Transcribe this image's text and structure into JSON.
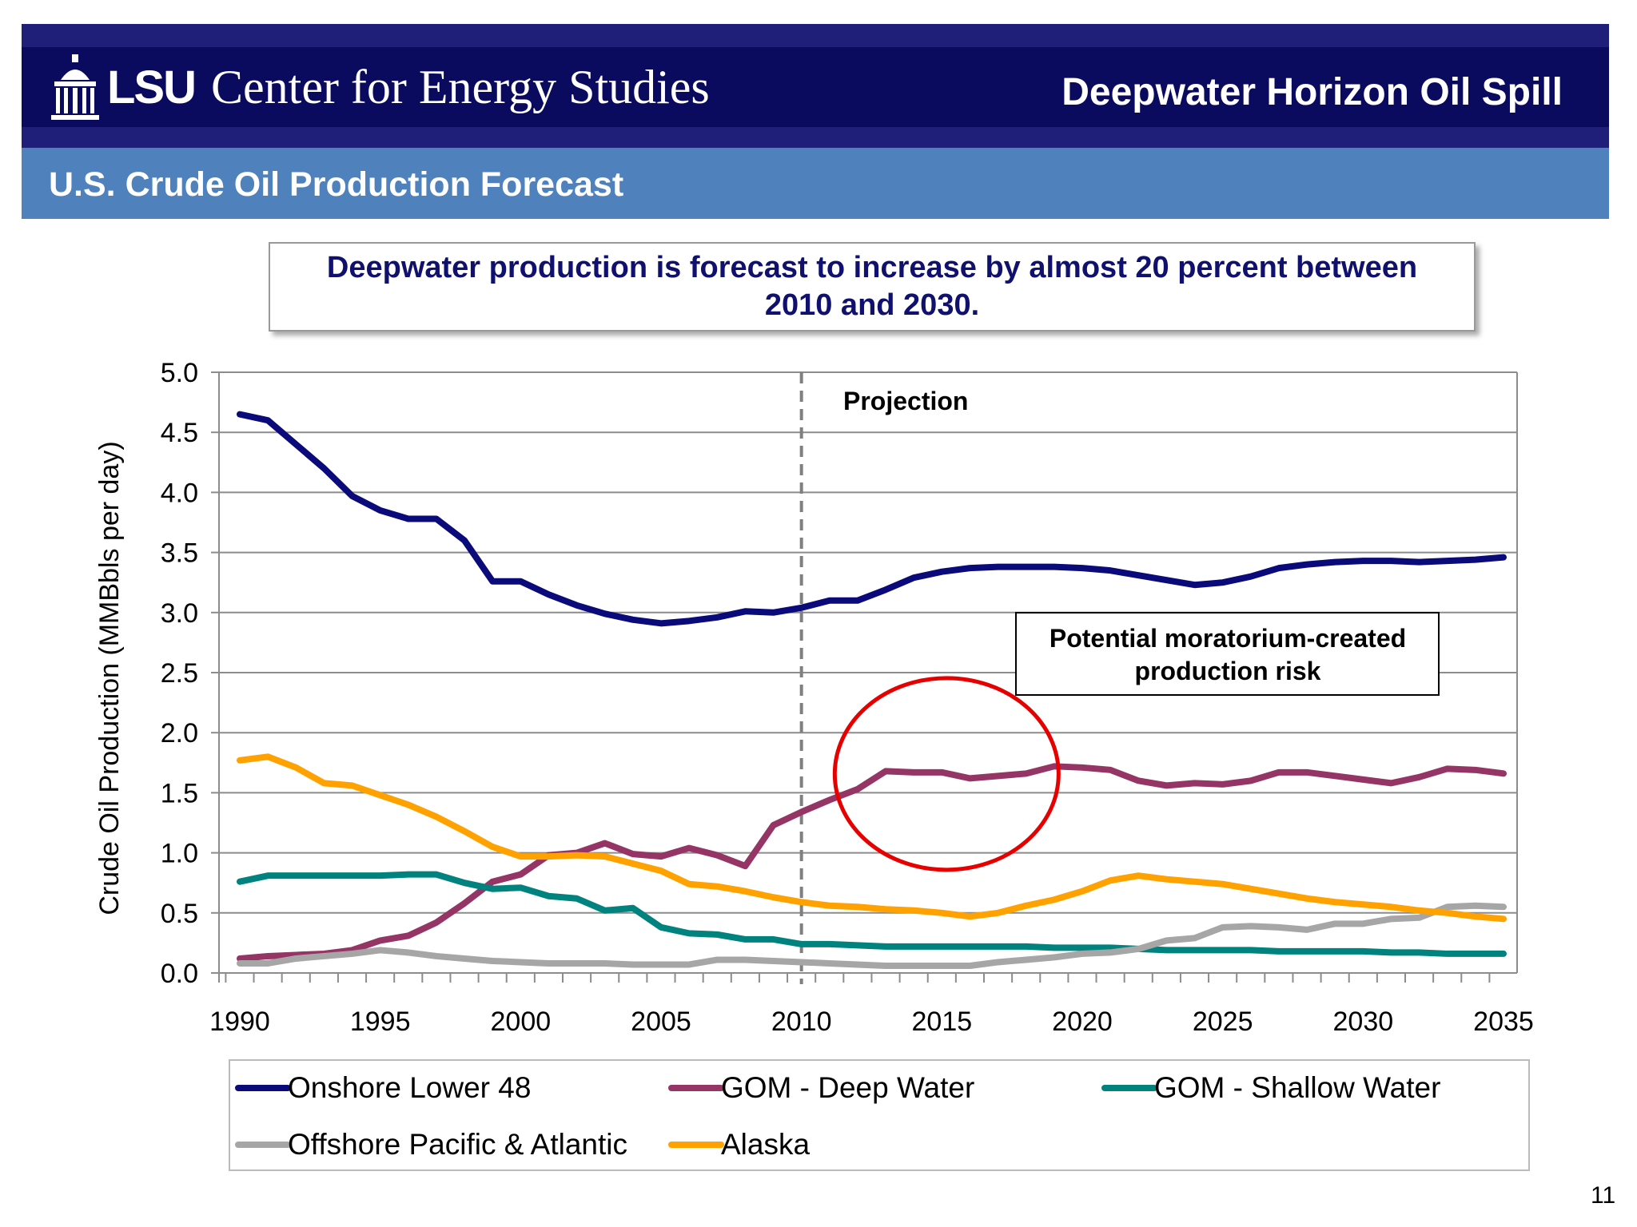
{
  "header": {
    "logo_text": "LSU",
    "org": "Center for Energy Studies",
    "topic": "Deepwater Horizon Oil Spill"
  },
  "slide_title": "U.S. Crude Oil Production Forecast",
  "callout": "Deepwater production is forecast to increase by almost 20 percent between 2010 and 2030.",
  "page_number": "11",
  "colors": {
    "header_dark": "#0a0a5e",
    "subheader": "#4f81bd",
    "callout_text": "#10106e",
    "circle": "#e60000"
  },
  "chart_data": {
    "type": "line",
    "ylabel": "Crude Oil Production (MMBbls per day)",
    "xlabel": "",
    "ylim": [
      0,
      5
    ],
    "xlim": [
      1990,
      2035
    ],
    "yticks": [
      "0.0",
      "0.5",
      "1.0",
      "1.5",
      "2.0",
      "2.5",
      "3.0",
      "3.5",
      "4.0",
      "4.5",
      "5.0"
    ],
    "xticks": [
      "1990",
      "1995",
      "2000",
      "2005",
      "2010",
      "2015",
      "2020",
      "2025",
      "2030",
      "2035"
    ],
    "grid": true,
    "legend_position": "bottom",
    "annotations": {
      "projection_label": "Projection",
      "projection_start": 2010,
      "risk_box": "Potential moratorium-created production risk",
      "risk_circle_center": [
        2015,
        1.67
      ]
    },
    "x_start": 1990,
    "series": [
      {
        "name": "Onshore Lower 48",
        "color": "#0a0a7a",
        "values": [
          4.65,
          4.6,
          4.4,
          4.2,
          3.97,
          3.85,
          3.78,
          3.78,
          3.6,
          3.26,
          3.26,
          3.15,
          3.06,
          2.99,
          2.94,
          2.91,
          2.93,
          2.96,
          3.01,
          3.0,
          3.04,
          3.1,
          3.1,
          3.19,
          3.29,
          3.34,
          3.37,
          3.38,
          3.38,
          3.38,
          3.37,
          3.35,
          3.31,
          3.27,
          3.23,
          3.25,
          3.3,
          3.37,
          3.4,
          3.42,
          3.43,
          3.43,
          3.42,
          3.43,
          3.44,
          3.46
        ]
      },
      {
        "name": "GOM - Deep Water",
        "color": "#953565",
        "values": [
          0.12,
          0.14,
          0.15,
          0.16,
          0.19,
          0.27,
          0.31,
          0.42,
          0.58,
          0.76,
          0.82,
          0.98,
          1.0,
          1.08,
          0.99,
          0.97,
          1.04,
          0.98,
          0.89,
          1.23,
          1.34,
          1.44,
          1.53,
          1.68,
          1.67,
          1.67,
          1.62,
          1.64,
          1.66,
          1.72,
          1.71,
          1.69,
          1.6,
          1.56,
          1.58,
          1.57,
          1.6,
          1.67,
          1.67,
          1.64,
          1.61,
          1.58,
          1.63,
          1.7,
          1.69,
          1.66
        ]
      },
      {
        "name": "GOM - Shallow Water",
        "color": "#00837f",
        "values": [
          0.76,
          0.81,
          0.81,
          0.81,
          0.81,
          0.81,
          0.82,
          0.82,
          0.75,
          0.7,
          0.71,
          0.64,
          0.62,
          0.52,
          0.54,
          0.38,
          0.33,
          0.32,
          0.28,
          0.28,
          0.24,
          0.24,
          0.23,
          0.22,
          0.22,
          0.22,
          0.22,
          0.22,
          0.22,
          0.21,
          0.21,
          0.21,
          0.2,
          0.19,
          0.19,
          0.19,
          0.19,
          0.18,
          0.18,
          0.18,
          0.18,
          0.17,
          0.17,
          0.16,
          0.16,
          0.16
        ]
      },
      {
        "name": "Offshore Pacific & Atlantic",
        "color": "#a6a6a6",
        "values": [
          0.08,
          0.08,
          0.12,
          0.14,
          0.16,
          0.19,
          0.17,
          0.14,
          0.12,
          0.1,
          0.09,
          0.08,
          0.08,
          0.08,
          0.07,
          0.07,
          0.07,
          0.11,
          0.11,
          0.1,
          0.09,
          0.08,
          0.07,
          0.06,
          0.06,
          0.06,
          0.06,
          0.09,
          0.11,
          0.13,
          0.16,
          0.17,
          0.2,
          0.27,
          0.29,
          0.38,
          0.39,
          0.38,
          0.36,
          0.41,
          0.41,
          0.45,
          0.46,
          0.55,
          0.56,
          0.55
        ]
      },
      {
        "name": "Alaska",
        "color": "#ffa200",
        "values": [
          1.77,
          1.8,
          1.71,
          1.58,
          1.56,
          1.48,
          1.4,
          1.3,
          1.18,
          1.05,
          0.97,
          0.97,
          0.98,
          0.97,
          0.91,
          0.85,
          0.74,
          0.72,
          0.68,
          0.63,
          0.59,
          0.56,
          0.55,
          0.53,
          0.52,
          0.5,
          0.47,
          0.5,
          0.56,
          0.61,
          0.68,
          0.77,
          0.81,
          0.78,
          0.76,
          0.74,
          0.7,
          0.66,
          0.62,
          0.59,
          0.57,
          0.55,
          0.52,
          0.5,
          0.47,
          0.45
        ]
      }
    ]
  }
}
